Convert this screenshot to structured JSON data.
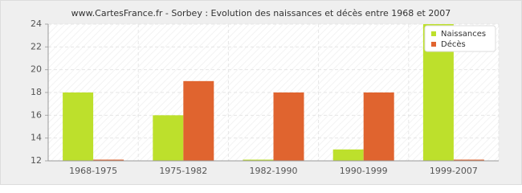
{
  "chart_data": {
    "type": "bar",
    "title": "www.CartesFrance.fr - Sorbey : Evolution des naissances et décès entre 1968 et 2007",
    "categories": [
      "1968-1975",
      "1975-1982",
      "1982-1990",
      "1990-1999",
      "1999-2007"
    ],
    "series": [
      {
        "name": "Naissances",
        "color": "#bde02c",
        "values": [
          18,
          16,
          12,
          13,
          24
        ]
      },
      {
        "name": "Décès",
        "color": "#e0642f",
        "values": [
          12,
          19,
          18,
          18,
          12
        ]
      }
    ],
    "ylim": [
      12,
      24
    ],
    "yticks": [
      12,
      14,
      16,
      18,
      20,
      22,
      24
    ],
    "grid": true,
    "legend": "top-right"
  }
}
